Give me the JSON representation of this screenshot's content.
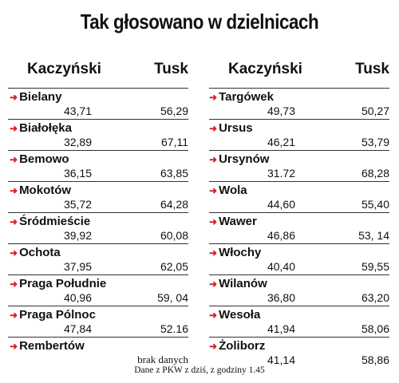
{
  "title": "Tak głosowano w dzielnicach",
  "headers": {
    "left": {
      "k": "Kaczyński",
      "t": "Tusk"
    },
    "right": {
      "k": "Kaczyński",
      "t": "Tusk"
    }
  },
  "left_rows": [
    {
      "name": "Bielany",
      "k": "43,71",
      "t": "56,29"
    },
    {
      "name": "Białołęka",
      "k": "32,89",
      "t": "67,11"
    },
    {
      "name": "Bemowo",
      "k": "36,15",
      "t": "63,85"
    },
    {
      "name": "Mokotów",
      "k": "35,72",
      "t": "64,28"
    },
    {
      "name": "Śródmieście",
      "k": "39,92",
      "t": "60,08"
    },
    {
      "name": "Ochota",
      "k": "37,95",
      "t": "62,05"
    },
    {
      "name": "Praga Południe",
      "k": "40,96",
      "t": "59, 04"
    },
    {
      "name": "Praga Pólnoc",
      "k": "47,84",
      "t": "52.16"
    },
    {
      "name": "Rembertów",
      "k": "",
      "t": "brak danych"
    }
  ],
  "right_rows": [
    {
      "name": "Targówek",
      "k": "49,73",
      "t": "50,27"
    },
    {
      "name": "Ursus",
      "k": "46,21",
      "t": "53,79"
    },
    {
      "name": "Ursynów",
      "k": "31.72",
      "t": "68,28"
    },
    {
      "name": "Wola",
      "k": "44,60",
      "t": "55,40"
    },
    {
      "name": "Wawer",
      "k": "46,86",
      "t": "53, 14"
    },
    {
      "name": "Włochy",
      "k": "40,40",
      "t": "59,55"
    },
    {
      "name": "Wilanów",
      "k": "36,80",
      "t": "63,20"
    },
    {
      "name": "Wesoła",
      "k": "41,94",
      "t": "58,06"
    },
    {
      "name": "Żoliborz",
      "k": "41,14",
      "t": "58,86"
    }
  ],
  "footer": "Dane z PKW z dziś, z godziny 1.45",
  "colors": {
    "arrow": "#d6232a",
    "text": "#111111",
    "rule": "#333333"
  },
  "icons": {
    "row_marker": "red-arrow-icon"
  }
}
